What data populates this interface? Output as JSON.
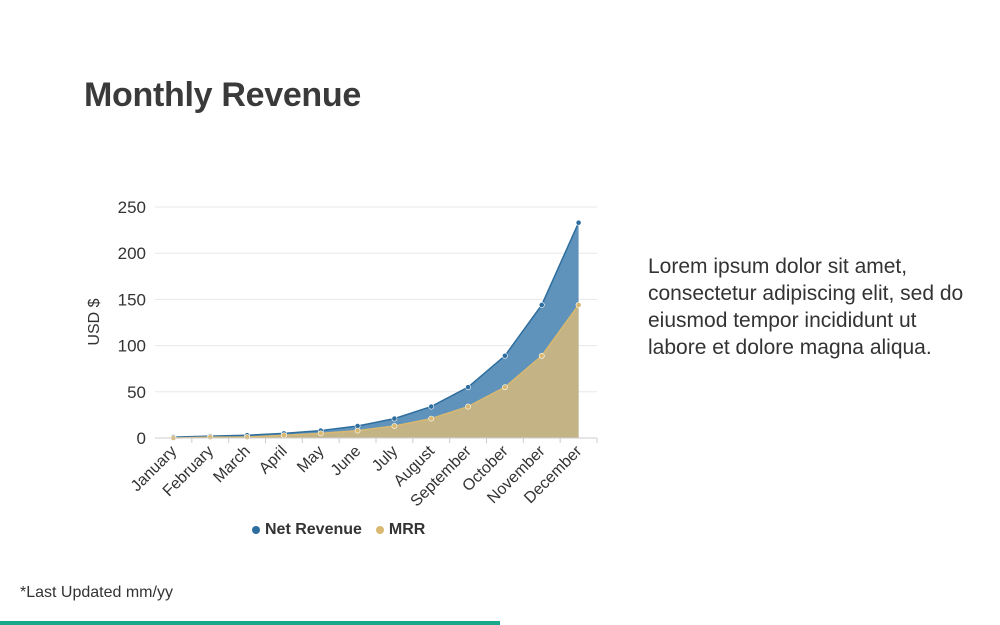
{
  "page": {
    "title": "Monthly Revenue",
    "body_text": "Lorem ipsum dolor sit amet, consectetur adipiscing elit, sed do eiusmod tempor incididunt ut labore et dolore magna aliqua.",
    "footnote": "*Last Updated mm/yy",
    "accent_color": "#1aa88a"
  },
  "chart_data": {
    "type": "area",
    "title": "Monthly Revenue",
    "xlabel": "",
    "ylabel": "USD $",
    "ylim": [
      0,
      250
    ],
    "yticks": [
      0,
      50,
      100,
      150,
      200,
      250
    ],
    "grid": true,
    "legend_position": "bottom",
    "categories": [
      "January",
      "February",
      "March",
      "April",
      "May",
      "June",
      "July",
      "August",
      "September",
      "October",
      "November",
      "December"
    ],
    "series": [
      {
        "name": "Net Revenue",
        "color": "#2e6e9e",
        "fill": "#5f93bb",
        "values": [
          1,
          2,
          3,
          5,
          8,
          13,
          21,
          34,
          55,
          89,
          144,
          233
        ]
      },
      {
        "name": "MRR",
        "color": "#d9b870",
        "fill": "#c4b384",
        "values": [
          0,
          1,
          1,
          3,
          5,
          8,
          13,
          21,
          34,
          55,
          89,
          144
        ]
      }
    ]
  }
}
